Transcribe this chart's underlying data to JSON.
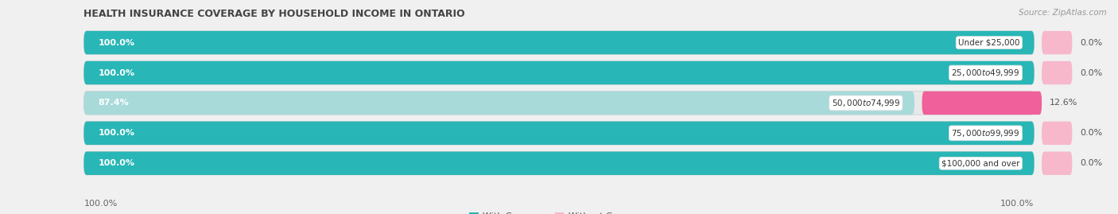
{
  "title": "HEALTH INSURANCE COVERAGE BY HOUSEHOLD INCOME IN ONTARIO",
  "source": "Source: ZipAtlas.com",
  "categories": [
    "Under $25,000",
    "$25,000 to $49,999",
    "$50,000 to $74,999",
    "$75,000 to $99,999",
    "$100,000 and over"
  ],
  "with_coverage": [
    100.0,
    100.0,
    87.4,
    100.0,
    100.0
  ],
  "without_coverage": [
    0.0,
    0.0,
    12.6,
    0.0,
    0.0
  ],
  "color_with": "#29b6b6",
  "color_without_strong": "#f0609a",
  "color_without_light": "#f7b8cc",
  "color_with_light": "#a8dada",
  "background_color": "#f0f0f0",
  "bar_bg_color": "#e2e2e2",
  "title_fontsize": 9,
  "label_fontsize": 8,
  "source_fontsize": 7.5,
  "tick_fontsize": 8
}
